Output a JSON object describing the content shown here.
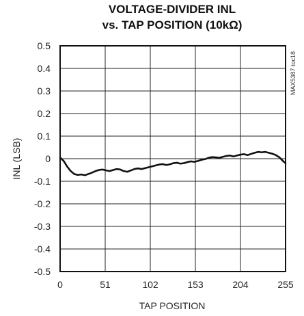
{
  "chart_data": {
    "type": "line",
    "title": "VOLTAGE-DIVIDER INL",
    "subtitle": "vs. TAP POSITION (10kΩ)",
    "xlabel": "TAP POSITION",
    "ylabel": "INL (LSB)",
    "side_label": "MAX5387 toc18",
    "xlim": [
      0,
      255
    ],
    "ylim": [
      -0.5,
      0.5
    ],
    "x_ticks": [
      "0",
      "51",
      "102",
      "153",
      "204",
      "255"
    ],
    "y_ticks": [
      "0.5",
      "0.4",
      "0.3",
      "0.2",
      "0.1",
      "0",
      "-0.1",
      "-0.2",
      "-0.3",
      "-0.4",
      "-0.5"
    ],
    "grid": true,
    "series": [
      {
        "color": "#111111",
        "x": [
          0,
          4,
          8,
          12,
          16,
          20,
          24,
          28,
          32,
          36,
          40,
          44,
          48,
          52,
          56,
          60,
          64,
          68,
          72,
          76,
          80,
          84,
          88,
          92,
          96,
          100,
          104,
          108,
          112,
          116,
          120,
          124,
          128,
          132,
          136,
          140,
          144,
          148,
          152,
          156,
          160,
          164,
          168,
          172,
          176,
          180,
          184,
          188,
          192,
          196,
          200,
          204,
          208,
          212,
          216,
          220,
          224,
          228,
          232,
          236,
          240,
          244,
          248,
          252,
          255
        ],
        "y": [
          0.005,
          -0.01,
          -0.035,
          -0.055,
          -0.068,
          -0.072,
          -0.07,
          -0.073,
          -0.068,
          -0.062,
          -0.055,
          -0.05,
          -0.048,
          -0.052,
          -0.055,
          -0.05,
          -0.046,
          -0.048,
          -0.055,
          -0.058,
          -0.052,
          -0.046,
          -0.043,
          -0.046,
          -0.042,
          -0.038,
          -0.034,
          -0.03,
          -0.026,
          -0.024,
          -0.028,
          -0.025,
          -0.02,
          -0.018,
          -0.022,
          -0.02,
          -0.015,
          -0.012,
          -0.014,
          -0.01,
          -0.005,
          -0.002,
          0.004,
          0.007,
          0.006,
          0.004,
          0.008,
          0.012,
          0.014,
          0.01,
          0.014,
          0.018,
          0.02,
          0.016,
          0.021,
          0.026,
          0.03,
          0.028,
          0.03,
          0.026,
          0.022,
          0.016,
          0.006,
          -0.01,
          -0.02
        ]
      }
    ]
  }
}
